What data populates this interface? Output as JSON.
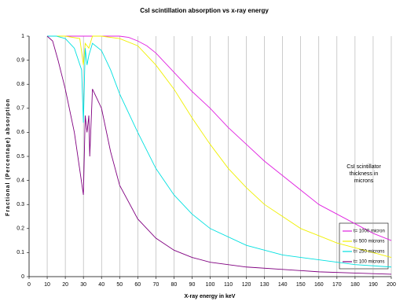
{
  "chart_data": {
    "type": "line",
    "title": "CsI scintillation absorption vs x-ray energy",
    "xlabel": "X-ray energy in keV",
    "ylabel": "Fractional (Percentage) absorption",
    "legend_title": "CsI scintillator thickness in microns",
    "legend_position": "right",
    "xlim": [
      0,
      200
    ],
    "ylim": [
      0,
      1
    ],
    "xticks": [
      0,
      10,
      20,
      30,
      40,
      50,
      60,
      70,
      80,
      90,
      100,
      110,
      120,
      130,
      140,
      150,
      160,
      170,
      180,
      190,
      200
    ],
    "yticks": [
      0,
      0.1,
      0.2,
      0.3,
      0.4,
      0.5,
      0.6,
      0.7,
      0.8,
      0.9,
      1
    ],
    "grid": "x",
    "series": [
      {
        "name": "t= 1000 micron",
        "color": "#e020e0",
        "x": [
          10,
          20,
          30,
          40,
          50,
          55,
          60,
          65,
          70,
          80,
          90,
          100,
          110,
          120,
          130,
          140,
          150,
          160,
          170,
          180,
          190,
          200
        ],
        "values": [
          1,
          1,
          1,
          1,
          1,
          0.995,
          0.98,
          0.96,
          0.93,
          0.85,
          0.77,
          0.7,
          0.62,
          0.55,
          0.48,
          0.42,
          0.36,
          0.3,
          0.26,
          0.22,
          0.18,
          0.15
        ]
      },
      {
        "name": "t= 500 microns",
        "color": "#f0f000",
        "x": [
          10,
          20,
          28,
          30,
          31,
          33,
          35,
          40,
          50,
          60,
          70,
          80,
          90,
          100,
          110,
          120,
          130,
          140,
          150,
          160,
          170,
          180,
          190,
          200
        ],
        "values": [
          1,
          1,
          0.99,
          0.88,
          0.97,
          0.95,
          1,
          1,
          0.99,
          0.96,
          0.88,
          0.78,
          0.66,
          0.55,
          0.45,
          0.37,
          0.3,
          0.25,
          0.2,
          0.17,
          0.14,
          0.12,
          0.1,
          0.08
        ]
      },
      {
        "name": "t= 250 microns",
        "color": "#00e0e0",
        "x": [
          10,
          15,
          20,
          25,
          29,
          30,
          31,
          32,
          33,
          35,
          40,
          45,
          50,
          60,
          70,
          80,
          90,
          100,
          120,
          140,
          160,
          180,
          200
        ],
        "values": [
          1,
          1,
          0.99,
          0.95,
          0.86,
          0.64,
          0.95,
          0.88,
          0.92,
          0.97,
          0.94,
          0.86,
          0.76,
          0.6,
          0.45,
          0.34,
          0.26,
          0.2,
          0.13,
          0.09,
          0.07,
          0.05,
          0.04
        ]
      },
      {
        "name": "t= 100 microns",
        "color": "#800080",
        "x": [
          10,
          13,
          16,
          20,
          25,
          30,
          31,
          32,
          33,
          33.5,
          35,
          40,
          45,
          50,
          60,
          70,
          80,
          90,
          100,
          120,
          140,
          160,
          180,
          200
        ],
        "values": [
          1,
          0.98,
          0.9,
          0.78,
          0.6,
          0.34,
          0.67,
          0.6,
          0.67,
          0.5,
          0.78,
          0.7,
          0.52,
          0.38,
          0.24,
          0.16,
          0.11,
          0.08,
          0.06,
          0.04,
          0.03,
          0.02,
          0.015,
          0.01
        ]
      }
    ]
  }
}
